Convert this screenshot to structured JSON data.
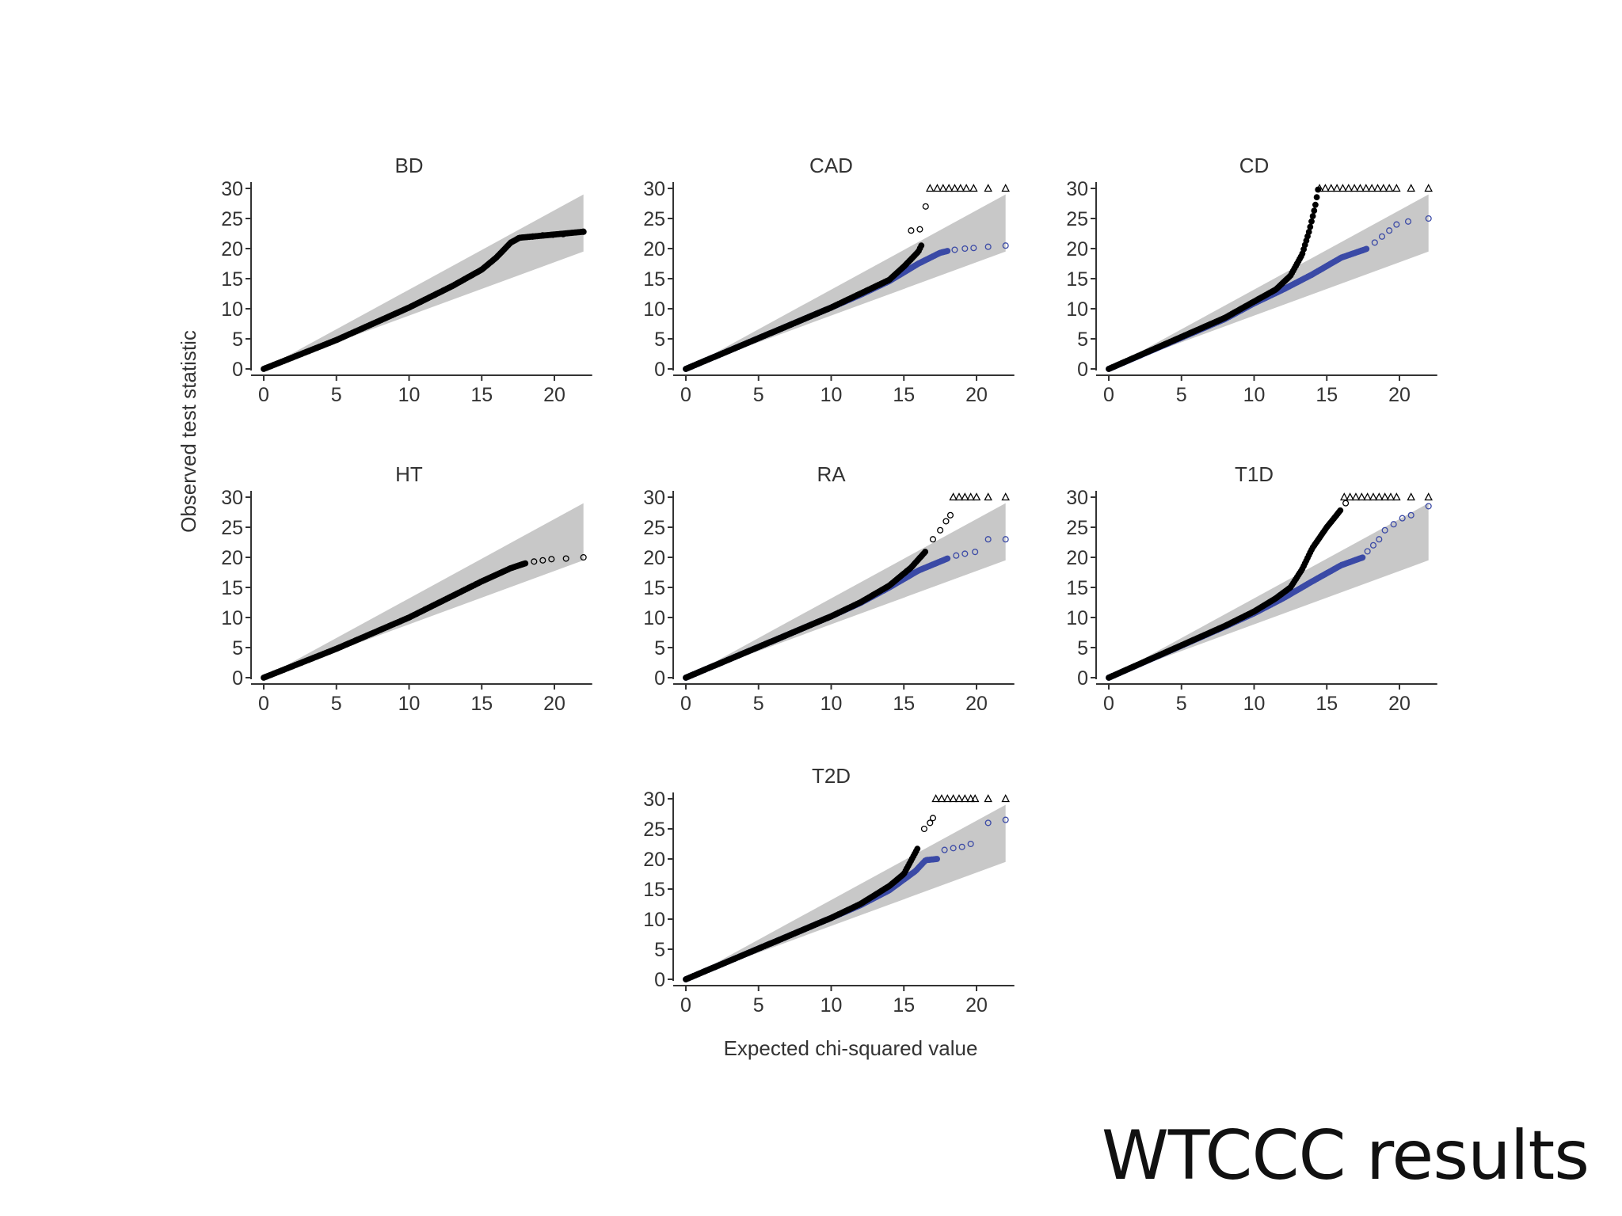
{
  "slide": {
    "caption": "WTCCC results"
  },
  "figure": {
    "xlabel": "Expected chi-squared value",
    "ylabel": "Observed test statistic"
  },
  "colors": {
    "all_snps": "#000000",
    "excluded_snps": "#3b4aa6",
    "band": "#c8c8c8",
    "axis": "#333333"
  },
  "chart_data": [
    {
      "type": "scatter",
      "title": "BD",
      "x_ticks": [
        "0",
        "5",
        "10",
        "15",
        "20"
      ],
      "y_ticks": [
        "0",
        "5",
        "10",
        "15",
        "20",
        "25",
        "30"
      ],
      "xlim": [
        0,
        22
      ],
      "ylim": [
        0,
        30
      ],
      "band_top_at_22": 29,
      "band_bottom_at_22": 19.5,
      "series": [
        {
          "kind": "all",
          "points": [
            [
              0,
              0
            ],
            [
              5,
              4.8
            ],
            [
              10,
              10.2
            ],
            [
              13,
              13.8
            ],
            [
              15,
              16.5
            ],
            [
              16,
              18.5
            ],
            [
              17,
              21
            ],
            [
              17.6,
              21.8
            ],
            [
              18.5,
              22
            ],
            [
              22,
              22.8
            ]
          ],
          "cap": null,
          "outliers": [
            [
              18.5,
              22
            ],
            [
              19.2,
              22.2
            ],
            [
              19.9,
              22.3
            ],
            [
              20.6,
              22.4
            ],
            [
              22,
              22.8
            ]
          ]
        }
      ]
    },
    {
      "type": "scatter",
      "title": "CAD",
      "x_ticks": [
        "0",
        "5",
        "10",
        "15",
        "20"
      ],
      "y_ticks": [
        "0",
        "5",
        "10",
        "15",
        "20",
        "25",
        "30"
      ],
      "xlim": [
        0,
        22
      ],
      "ylim": [
        0,
        30
      ],
      "band_top_at_22": 29,
      "band_bottom_at_22": 19.5,
      "series": [
        {
          "kind": "excluded",
          "points": [
            [
              0,
              0
            ],
            [
              10,
              10.2
            ],
            [
              12,
              12.3
            ],
            [
              14,
              14.6
            ],
            [
              16,
              17.5
            ],
            [
              17.5,
              19.3
            ],
            [
              18,
              19.6
            ]
          ],
          "outliers": [
            [
              18.5,
              19.8
            ],
            [
              19.2,
              20
            ],
            [
              19.8,
              20.1
            ],
            [
              20.8,
              20.3
            ],
            [
              22,
              20.5
            ]
          ]
        },
        {
          "kind": "all",
          "points": [
            [
              0,
              0
            ],
            [
              10,
              10.2
            ],
            [
              12,
              12.5
            ],
            [
              14,
              14.8
            ],
            [
              15,
              17
            ],
            [
              16,
              19.5
            ],
            [
              16.2,
              20.5
            ]
          ],
          "outliers": [
            [
              15.5,
              23
            ],
            [
              16.1,
              23.2
            ],
            [
              16.5,
              27
            ]
          ],
          "cap_x": [
            16.8,
            17.3,
            17.7,
            18.1,
            18.5,
            18.9,
            19.3,
            19.8,
            20.8,
            22
          ]
        }
      ]
    },
    {
      "type": "scatter",
      "title": "CD",
      "x_ticks": [
        "0",
        "5",
        "10",
        "15",
        "20"
      ],
      "y_ticks": [
        "0",
        "5",
        "10",
        "15",
        "20",
        "25",
        "30"
      ],
      "xlim": [
        0,
        22
      ],
      "ylim": [
        0,
        30
      ],
      "band_top_at_22": 29,
      "band_bottom_at_22": 19.5,
      "series": [
        {
          "kind": "excluded",
          "points": [
            [
              0,
              0
            ],
            [
              8,
              8.3
            ],
            [
              10,
              10.9
            ],
            [
              12,
              13.2
            ],
            [
              14,
              15.7
            ],
            [
              16,
              18.5
            ],
            [
              17.8,
              20
            ]
          ],
          "outliers": [
            [
              18.3,
              21
            ],
            [
              18.8,
              22
            ],
            [
              19.3,
              23
            ],
            [
              19.8,
              24
            ],
            [
              20.6,
              24.5
            ],
            [
              22,
              25
            ]
          ]
        },
        {
          "kind": "all",
          "points": [
            [
              0,
              0
            ],
            [
              8,
              8.5
            ],
            [
              10,
              11.2
            ],
            [
              11.5,
              13.2
            ],
            [
              12.5,
              15.5
            ],
            [
              13.3,
              19
            ],
            [
              13.8,
              23
            ],
            [
              14.2,
              27
            ],
            [
              14.4,
              29.8
            ]
          ],
          "outliers": [],
          "cap_x": [
            14.5,
            14.9,
            15.3,
            15.7,
            16.1,
            16.5,
            16.9,
            17.3,
            17.7,
            18.1,
            18.5,
            18.9,
            19.3,
            19.8,
            20.8,
            22
          ]
        }
      ]
    },
    {
      "type": "scatter",
      "title": "HT",
      "x_ticks": [
        "0",
        "5",
        "10",
        "15",
        "20"
      ],
      "y_ticks": [
        "0",
        "5",
        "10",
        "15",
        "20",
        "25",
        "30"
      ],
      "xlim": [
        0,
        22
      ],
      "ylim": [
        0,
        30
      ],
      "band_top_at_22": 29,
      "band_bottom_at_22": 19.5,
      "series": [
        {
          "kind": "all",
          "points": [
            [
              0,
              0
            ],
            [
              5,
              4.8
            ],
            [
              10,
              10
            ],
            [
              15,
              16
            ],
            [
              17,
              18.2
            ],
            [
              18,
              19
            ]
          ],
          "outliers": [
            [
              18.6,
              19.3
            ],
            [
              19.2,
              19.5
            ],
            [
              19.8,
              19.7
            ],
            [
              20.8,
              19.8
            ],
            [
              22,
              20
            ]
          ]
        }
      ]
    },
    {
      "type": "scatter",
      "title": "RA",
      "x_ticks": [
        "0",
        "5",
        "10",
        "15",
        "20"
      ],
      "y_ticks": [
        "0",
        "5",
        "10",
        "15",
        "20",
        "25",
        "30"
      ],
      "xlim": [
        0,
        22
      ],
      "ylim": [
        0,
        30
      ],
      "band_top_at_22": 29,
      "band_bottom_at_22": 19.5,
      "series": [
        {
          "kind": "excluded",
          "points": [
            [
              0,
              0
            ],
            [
              10,
              10.2
            ],
            [
              12,
              12.4
            ],
            [
              14,
              15
            ],
            [
              16,
              17.8
            ],
            [
              18,
              19.8
            ]
          ],
          "outliers": [
            [
              18.6,
              20.3
            ],
            [
              19.2,
              20.6
            ],
            [
              19.9,
              20.9
            ],
            [
              20.8,
              23
            ],
            [
              22,
              23
            ]
          ]
        },
        {
          "kind": "all",
          "points": [
            [
              0,
              0
            ],
            [
              10,
              10.2
            ],
            [
              12,
              12.5
            ],
            [
              14,
              15.3
            ],
            [
              15.5,
              18.3
            ],
            [
              16.5,
              21
            ]
          ],
          "outliers": [
            [
              17,
              23
            ],
            [
              17.5,
              24.5
            ],
            [
              17.9,
              26
            ],
            [
              18.2,
              27
            ]
          ],
          "cap_x": [
            18.4,
            18.8,
            19.2,
            19.6,
            20,
            20.8,
            22
          ]
        }
      ]
    },
    {
      "type": "scatter",
      "title": "T1D",
      "x_ticks": [
        "0",
        "5",
        "10",
        "15",
        "20"
      ],
      "y_ticks": [
        "0",
        "5",
        "10",
        "15",
        "20",
        "25",
        "30"
      ],
      "xlim": [
        0,
        22
      ],
      "ylim": [
        0,
        30
      ],
      "band_top_at_22": 29,
      "band_bottom_at_22": 19.5,
      "series": [
        {
          "kind": "excluded",
          "points": [
            [
              0,
              0
            ],
            [
              8,
              8.5
            ],
            [
              10,
              10.7
            ],
            [
              12,
              13.2
            ],
            [
              14,
              16
            ],
            [
              16,
              18.7
            ],
            [
              17.5,
              20
            ]
          ],
          "outliers": [
            [
              17.8,
              21
            ],
            [
              18.2,
              22
            ],
            [
              18.6,
              23
            ],
            [
              19,
              24.5
            ],
            [
              19.6,
              25.5
            ],
            [
              20.2,
              26.5
            ],
            [
              20.8,
              27
            ],
            [
              22,
              28.5
            ]
          ]
        },
        {
          "kind": "all",
          "points": [
            [
              0,
              0
            ],
            [
              8,
              8.6
            ],
            [
              10,
              11
            ],
            [
              11.5,
              13.2
            ],
            [
              12.5,
              15
            ],
            [
              13.3,
              18
            ],
            [
              14,
              21.5
            ],
            [
              15,
              25
            ],
            [
              16,
              28
            ]
          ],
          "outliers": [
            [
              16.3,
              29
            ]
          ],
          "cap_x": [
            16.2,
            16.6,
            17,
            17.4,
            17.8,
            18.2,
            18.6,
            19,
            19.4,
            19.8,
            20.8,
            22
          ]
        }
      ]
    },
    {
      "type": "scatter",
      "title": "T2D",
      "x_ticks": [
        "0",
        "5",
        "10",
        "15",
        "20"
      ],
      "y_ticks": [
        "0",
        "5",
        "10",
        "15",
        "20",
        "25",
        "30"
      ],
      "xlim": [
        0,
        22
      ],
      "ylim": [
        0,
        30
      ],
      "band_top_at_22": 29,
      "band_bottom_at_22": 19.5,
      "series": [
        {
          "kind": "excluded",
          "points": [
            [
              0,
              0
            ],
            [
              10,
              10.2
            ],
            [
              12,
              12.3
            ],
            [
              14,
              14.8
            ],
            [
              15.8,
              18
            ],
            [
              16.5,
              19.8
            ],
            [
              17.3,
              20
            ]
          ],
          "outliers": [
            [
              17.8,
              21.5
            ],
            [
              18.4,
              21.8
            ],
            [
              19,
              22
            ],
            [
              19.6,
              22.5
            ],
            [
              20.8,
              26
            ],
            [
              22,
              26.5
            ]
          ]
        },
        {
          "kind": "all",
          "points": [
            [
              0,
              0
            ],
            [
              10,
              10.2
            ],
            [
              12,
              12.5
            ],
            [
              14,
              15.5
            ],
            [
              15,
              17.5
            ],
            [
              16,
              22
            ]
          ],
          "outliers": [
            [
              16.4,
              25
            ],
            [
              16.8,
              26
            ],
            [
              17,
              26.8
            ]
          ],
          "cap_x": [
            17.2,
            17.6,
            18,
            18.4,
            18.8,
            19.2,
            19.6,
            19.9,
            20.8,
            22
          ]
        }
      ]
    }
  ]
}
